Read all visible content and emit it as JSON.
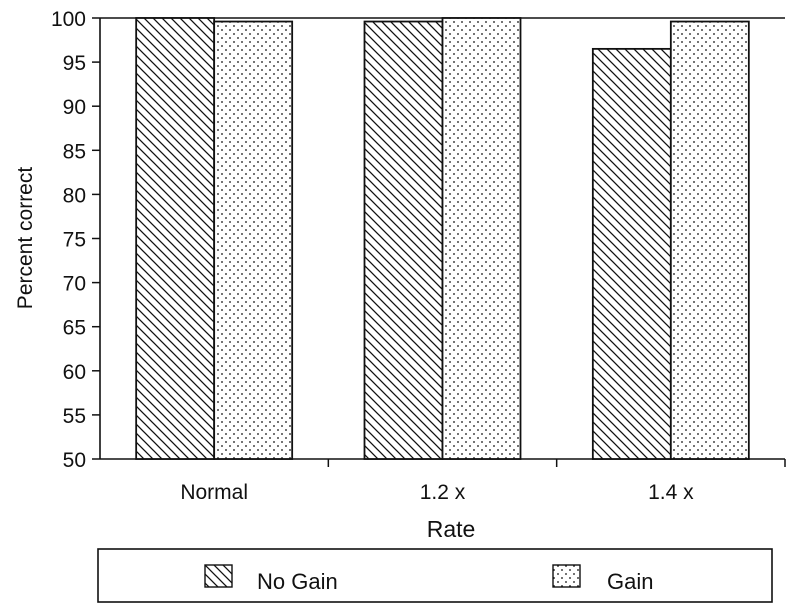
{
  "chart_data": {
    "type": "bar",
    "categories": [
      "Normal",
      "1.2 x",
      "1.4 x"
    ],
    "series": [
      {
        "name": "No Gain",
        "values": [
          100,
          99.6,
          96.5
        ],
        "pattern": "diagonal-hatch"
      },
      {
        "name": "Gain",
        "values": [
          99.6,
          100,
          99.6
        ],
        "pattern": "dots"
      }
    ],
    "xlabel": "Rate",
    "ylabel": "Percent correct",
    "ylim": [
      50,
      100
    ],
    "yticks": [
      50,
      55,
      60,
      65,
      70,
      75,
      80,
      85,
      90,
      95,
      100
    ],
    "grid": false,
    "legend_position": "bottom",
    "colors": {
      "ink": "#111111",
      "background": "#ffffff"
    }
  }
}
